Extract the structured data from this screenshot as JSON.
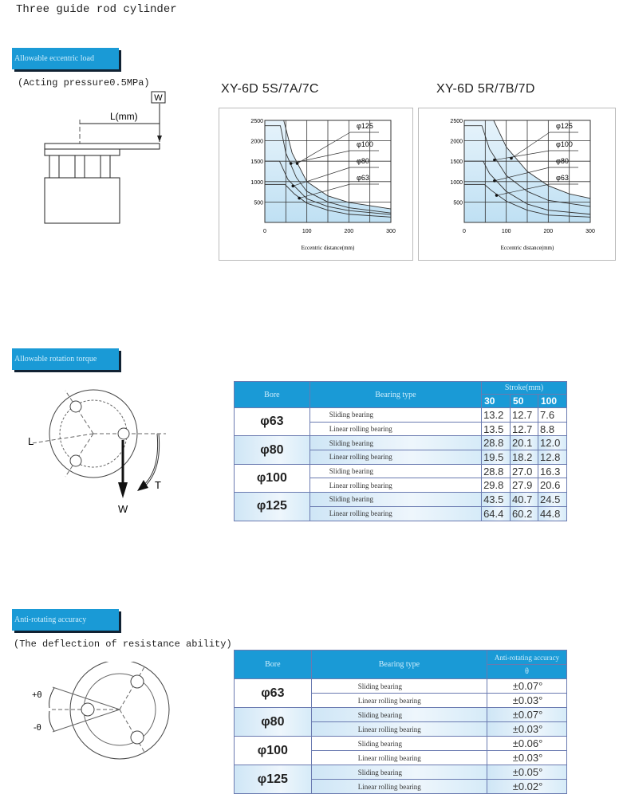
{
  "page_title": "Three guide rod cylinder",
  "section1": {
    "header": "Allowable eccentric load",
    "subtitle": "(Acting pressure0.5MPa)",
    "diagram": {
      "load_label": "W",
      "distance_label": "L(mm)"
    }
  },
  "chart_data": [
    {
      "type": "line",
      "title": "XY-6D 5S/7A/7C",
      "xlabel": "Eccentric distance(mm)",
      "ylabel": "",
      "xlim": [
        0,
        300
      ],
      "ylim": [
        0,
        2500
      ],
      "xticks": [
        "0",
        "100",
        "200",
        "300"
      ],
      "yticks": [
        "500",
        "1000",
        "1500",
        "2000",
        "2500"
      ],
      "grid": true,
      "fill_color": "#bfe0f3",
      "series": [
        {
          "name": "φ125",
          "points": [
            [
              0,
              2500
            ],
            [
              45,
              2500
            ],
            [
              65,
              1700
            ],
            [
              100,
              1000
            ],
            [
              150,
              650
            ],
            [
              200,
              490
            ],
            [
              300,
              330
            ]
          ]
        },
        {
          "name": "φ100",
          "points": [
            [
              0,
              2370
            ],
            [
              37,
              2370
            ],
            [
              50,
              1700
            ],
            [
              75,
              1100
            ],
            [
              100,
              760
            ],
            [
              150,
              500
            ],
            [
              200,
              360
            ],
            [
              300,
              230
            ]
          ]
        },
        {
          "name": "φ80",
          "points": [
            [
              0,
              1500
            ],
            [
              35,
              1500
            ],
            [
              55,
              1050
            ],
            [
              100,
              580
            ],
            [
              150,
              390
            ],
            [
              200,
              290
            ],
            [
              300,
              195
            ]
          ]
        },
        {
          "name": "φ63",
          "points": [
            [
              0,
              930
            ],
            [
              48,
              930
            ],
            [
              70,
              700
            ],
            [
              100,
              470
            ],
            [
              150,
              300
            ],
            [
              200,
              200
            ],
            [
              300,
              130
            ]
          ]
        }
      ]
    },
    {
      "type": "line",
      "title": "XY-6D 5R/7B/7D",
      "xlabel": "Eccentric distance(mm)",
      "ylabel": "",
      "xlim": [
        0,
        300
      ],
      "ylim": [
        0,
        2500
      ],
      "xticks": [
        "0",
        "100",
        "200",
        "300"
      ],
      "yticks": [
        "500",
        "1000",
        "1500",
        "2000",
        "2500"
      ],
      "grid": true,
      "fill_color": "#bfe0f3",
      "series": [
        {
          "name": "φ125",
          "points": [
            [
              0,
              2500
            ],
            [
              70,
              2500
            ],
            [
              100,
              1850
            ],
            [
              150,
              1250
            ],
            [
              200,
              900
            ],
            [
              250,
              700
            ],
            [
              300,
              590
            ]
          ]
        },
        {
          "name": "φ100",
          "points": [
            [
              0,
              2370
            ],
            [
              42,
              2370
            ],
            [
              60,
              1800
            ],
            [
              100,
              1150
            ],
            [
              150,
              760
            ],
            [
              200,
              540
            ],
            [
              300,
              390
            ]
          ]
        },
        {
          "name": "φ80",
          "points": [
            [
              0,
              1500
            ],
            [
              45,
              1500
            ],
            [
              60,
              1200
            ],
            [
              100,
              760
            ],
            [
              150,
              450
            ],
            [
              200,
              300
            ],
            [
              300,
              200
            ]
          ]
        },
        {
          "name": "φ63",
          "points": [
            [
              0,
              930
            ],
            [
              48,
              930
            ],
            [
              65,
              780
            ],
            [
              100,
              520
            ],
            [
              150,
              300
            ],
            [
              200,
              180
            ],
            [
              300,
              130
            ]
          ]
        }
      ]
    }
  ],
  "section2": {
    "header": "Allowable rotation torque",
    "diagram": {
      "length_label": "L",
      "load_label": "W",
      "torque_label": "T"
    },
    "table": {
      "headers": {
        "bore": "Bore",
        "bearing_type": "Bearing type",
        "stroke": "Stroke(mm)",
        "strokes": [
          "30",
          "50",
          "100"
        ]
      },
      "rows": [
        {
          "bore": "φ63",
          "items": [
            {
              "type": "Sliding bearing",
              "values": [
                "13.2",
                "12.7",
                "7.6"
              ]
            },
            {
              "type": "Linear rolling bearing",
              "values": [
                "13.5",
                "12.7",
                "8.8"
              ]
            }
          ]
        },
        {
          "bore": "φ80",
          "items": [
            {
              "type": "Sliding bearing",
              "values": [
                "28.8",
                "20.1",
                "12.0"
              ]
            },
            {
              "type": "Linear rolling bearing",
              "values": [
                "19.5",
                "18.2",
                "12.8"
              ]
            }
          ]
        },
        {
          "bore": "φ100",
          "items": [
            {
              "type": "Sliding bearing",
              "values": [
                "28.8",
                "27.0",
                "16.3"
              ]
            },
            {
              "type": "Linear rolling bearing",
              "values": [
                "29.8",
                "27.9",
                "20.6"
              ]
            }
          ]
        },
        {
          "bore": "φ125",
          "items": [
            {
              "type": "Sliding bearing",
              "values": [
                "43.5",
                "40.7",
                "24.5"
              ]
            },
            {
              "type": "Linear rolling bearing",
              "values": [
                "64.4",
                "60.2",
                "44.8"
              ]
            }
          ]
        }
      ]
    }
  },
  "section3": {
    "header": "Anti-rotating accuracy",
    "subtitle": "(The deflection of resistance ability)",
    "diagram": {
      "plus_label": "+θ",
      "minus_label": "-θ"
    },
    "table": {
      "headers": {
        "bore": "Bore",
        "bearing_type": "Bearing type",
        "accuracy": "Anti-rotating accuracy",
        "theta": "θ"
      },
      "rows": [
        {
          "bore": "φ63",
          "items": [
            {
              "type": "Sliding bearing",
              "value": "±0.07°"
            },
            {
              "type": "Linear rolling bearing",
              "value": "±0.03°"
            }
          ]
        },
        {
          "bore": "φ80",
          "items": [
            {
              "type": "Sliding bearing",
              "value": "±0.07°"
            },
            {
              "type": "Linear rolling bearing",
              "value": "±0.03°"
            }
          ]
        },
        {
          "bore": "φ100",
          "items": [
            {
              "type": "Sliding bearing",
              "value": "±0.06°"
            },
            {
              "type": "Linear rolling bearing",
              "value": "±0.03°"
            }
          ]
        },
        {
          "bore": "φ125",
          "items": [
            {
              "type": "Sliding bearing",
              "value": "±0.05°"
            },
            {
              "type": "Linear rolling bearing",
              "value": "±0.02°"
            }
          ]
        }
      ]
    }
  }
}
